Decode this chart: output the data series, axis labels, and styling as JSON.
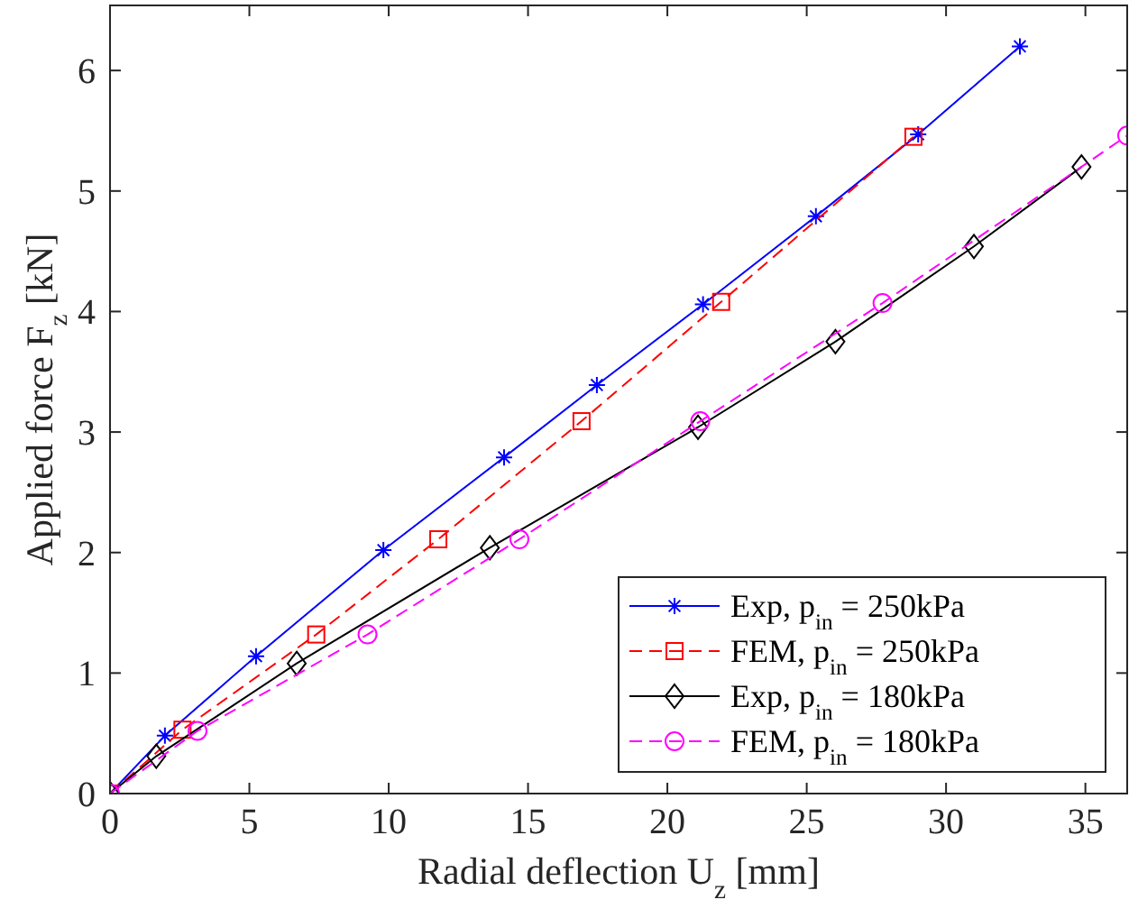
{
  "chart_data": {
    "type": "line",
    "xlabel": "Radial deflection U$_{z}$ [mm]",
    "ylabel": "Applied force F$_{z}$ [kN]",
    "xlim": [
      0,
      36.5
    ],
    "ylim": [
      0,
      6.54
    ],
    "xticks": [
      0,
      5,
      10,
      15,
      20,
      25,
      30,
      35
    ],
    "yticks": [
      0,
      1,
      2,
      3,
      4,
      5,
      6
    ],
    "grid": false,
    "legend": "bottom right",
    "series": [
      {
        "name": "Exp, p$_{in}$ = 250kPa",
        "color": "#0000ff",
        "marker": "cross",
        "line_style": "solid",
        "x": [
          0,
          1.97,
          5.24,
          9.81,
          14.14,
          17.47,
          21.28,
          25.33,
          29.0,
          32.65
        ],
        "values": [
          0,
          0.48,
          1.14,
          2.02,
          2.79,
          3.39,
          4.06,
          4.79,
          5.47,
          6.2
        ]
      },
      {
        "name": "FEM, p$_{in}$ = 250kPa",
        "color": "#ff0000",
        "marker": "square",
        "line_style": "dashed",
        "x": [
          0,
          2.6,
          7.4,
          11.78,
          16.92,
          21.93,
          28.83
        ],
        "values": [
          0,
          0.53,
          1.32,
          2.11,
          3.09,
          4.08,
          5.45
        ]
      },
      {
        "name": "Exp, p$_{in}$ = 180kPa",
        "color": "#000000",
        "marker": "diamond",
        "line_style": "solid",
        "x": [
          0,
          1.66,
          6.7,
          13.63,
          21.1,
          26.03,
          31.0,
          34.86
        ],
        "values": [
          0,
          0.31,
          1.08,
          2.04,
          3.04,
          3.75,
          4.54,
          5.2
        ]
      },
      {
        "name": "FEM, p$_{in}$ = 180kPa",
        "color": "#ff00ff",
        "marker": "circle",
        "line_style": "dashed",
        "x": [
          0,
          3.14,
          9.24,
          14.69,
          21.18,
          27.72,
          36.5
        ],
        "values": [
          0,
          0.52,
          1.32,
          2.11,
          3.09,
          4.07,
          5.46
        ]
      }
    ]
  }
}
